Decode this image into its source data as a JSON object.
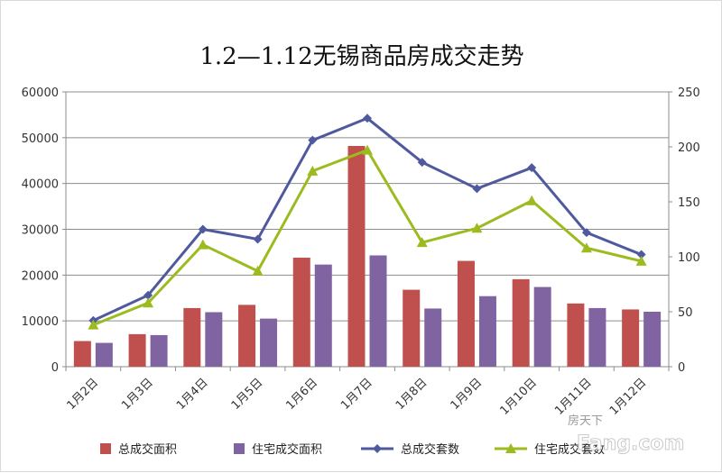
{
  "chart_data": {
    "type": "bar",
    "title": "1.2—1.12无锡商品房成交走势",
    "categories": [
      "1月2日",
      "1月3日",
      "1月4日",
      "1月5日",
      "1月6日",
      "1月7日",
      "1月8日",
      "1月9日",
      "1月10日",
      "1月11日",
      "1月12日"
    ],
    "series": [
      {
        "name": "总成交面积",
        "type": "bar",
        "axis": "left",
        "color": "#c0504d",
        "values": [
          5600,
          7100,
          12800,
          13500,
          23800,
          48200,
          16800,
          23100,
          19100,
          13800,
          12500
        ]
      },
      {
        "name": "住宅成交面积",
        "type": "bar",
        "axis": "left",
        "color": "#8064a2",
        "values": [
          5200,
          6900,
          11900,
          10500,
          22300,
          24300,
          12700,
          15400,
          17400,
          12800,
          12000
        ]
      },
      {
        "name": "总成交套数",
        "type": "line",
        "axis": "right",
        "color": "#4f5a9e",
        "marker": "diamond",
        "values": [
          42,
          65,
          125,
          116,
          206,
          226,
          186,
          162,
          181,
          122,
          102
        ]
      },
      {
        "name": "住宅成交套数",
        "type": "line",
        "axis": "right",
        "color": "#9bbb1f",
        "marker": "triangle",
        "values": [
          38,
          58,
          111,
          87,
          178,
          197,
          113,
          126,
          151,
          108,
          96
        ]
      }
    ],
    "y_left": {
      "min": 0,
      "max": 60000,
      "step": 10000
    },
    "y_right": {
      "min": 0,
      "max": 250,
      "step": 50
    },
    "legend_position": "bottom"
  },
  "watermark": {
    "brand": "Fang.com",
    "tagline": "房天下"
  }
}
